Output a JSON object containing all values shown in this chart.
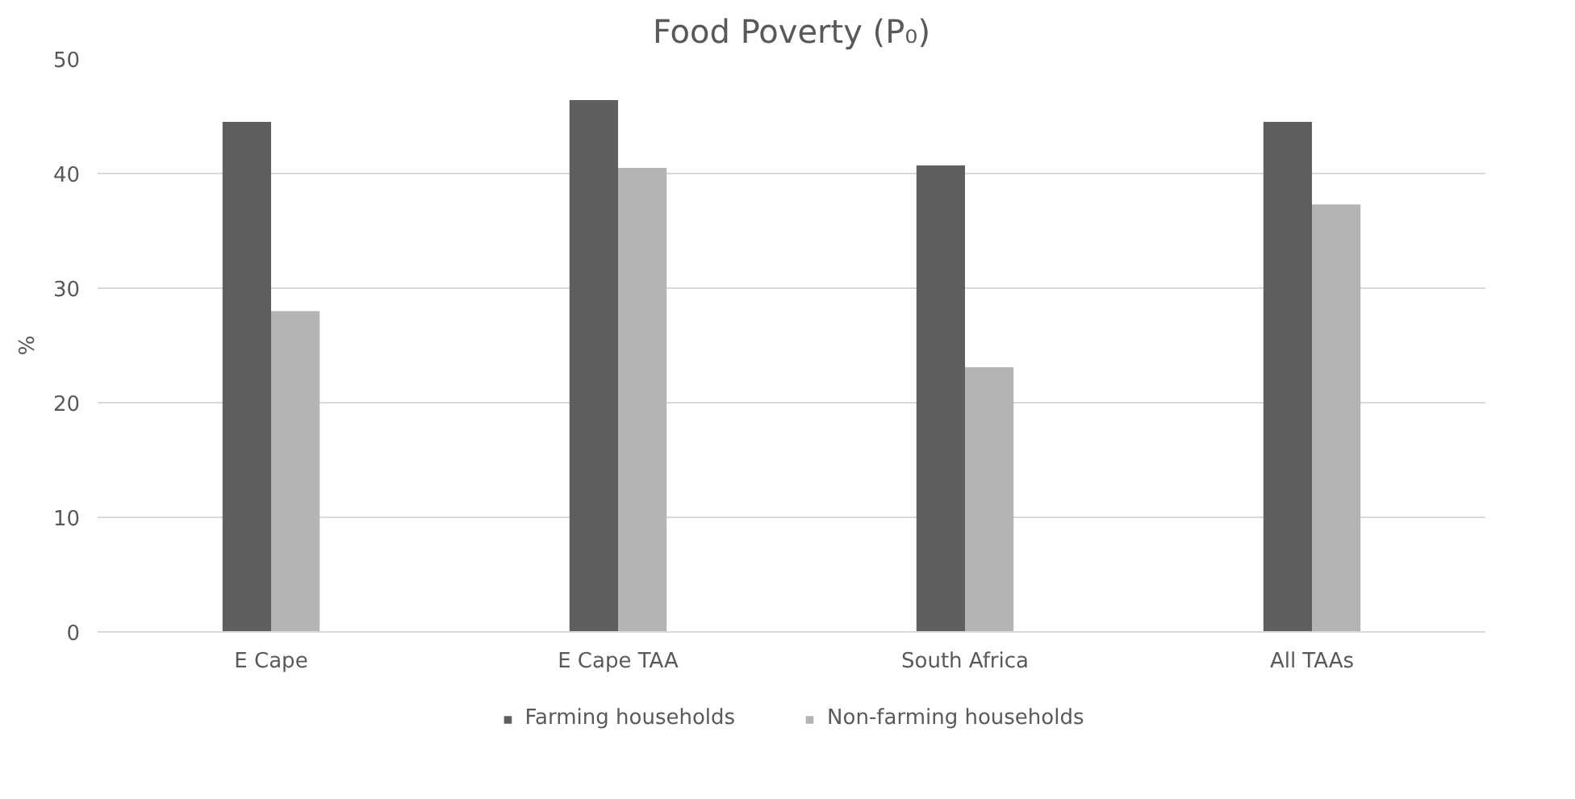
{
  "chart_data": {
    "type": "bar",
    "title": "Food Poverty (P₀)",
    "ylabel": "%",
    "categories": [
      "E Cape",
      "E Cape TAA",
      "South Africa",
      "All TAAs"
    ],
    "series": [
      {
        "name": "Farming households",
        "color": "#5f5f5f",
        "values": [
          44.5,
          46.4,
          40.7,
          44.5
        ]
      },
      {
        "name": "Non-farming households",
        "color": "#b4b4b4",
        "values": [
          28.0,
          40.5,
          23.1,
          37.3
        ]
      }
    ],
    "ylim": [
      0,
      50
    ],
    "yticks": [
      0,
      10,
      20,
      30,
      40,
      50
    ],
    "grid": "y",
    "legend": "bottom"
  }
}
